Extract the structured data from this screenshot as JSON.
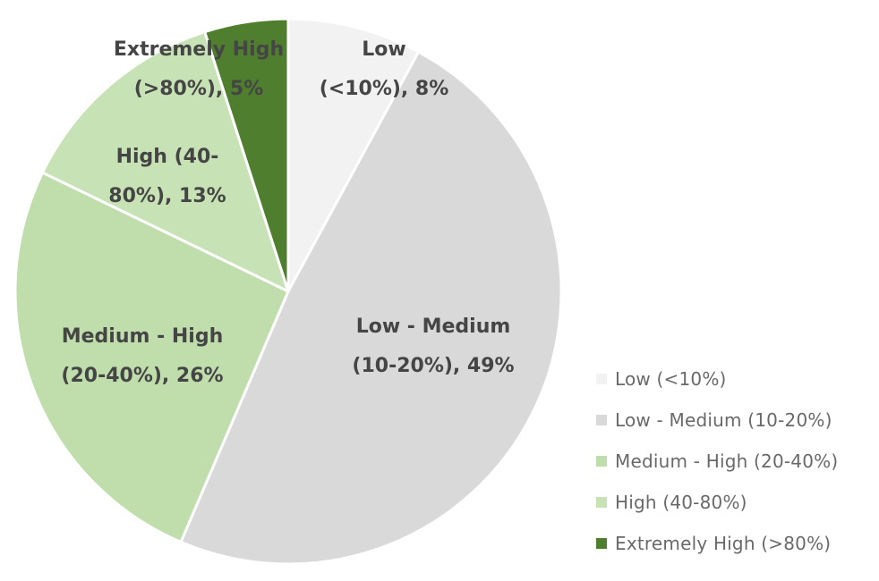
{
  "chart_data": {
    "type": "pie",
    "title": "",
    "unit": "%",
    "legend_position": "right",
    "background_color": "#ffffff",
    "label_text_color": "#454545",
    "legend_text_color": "#696969",
    "categories": [
      "Low (<10%)",
      "Low - Medium (10-20%)",
      "Medium - High (20-40%)",
      "High (40-80%)",
      "Extremely High (>80%)"
    ],
    "values": [
      8,
      49,
      26,
      13,
      5
    ],
    "slices": [
      {
        "label": "Low (<10%)",
        "value": 8,
        "color": "#f2f2f2",
        "label_lines": [
          "Low",
          "(<10%), 8%"
        ]
      },
      {
        "label": "Low - Medium (10-20%)",
        "value": 49,
        "color": "#d9d9d9",
        "label_lines": [
          "Low - Medium",
          "(10-20%), 49%"
        ]
      },
      {
        "label": "Medium - High (20-40%)",
        "value": 26,
        "color": "#c0ddac",
        "label_lines": [
          "Medium - High",
          "(20-40%), 26%"
        ]
      },
      {
        "label": "High (40-80%)",
        "value": 13,
        "color": "#c7e2b5",
        "label_lines": [
          "High (40-",
          "80%), 13%"
        ]
      },
      {
        "label": "Extremely High (>80%)",
        "value": 5,
        "color": "#4e7e2e",
        "label_lines": [
          "Extremely High",
          "(>80%), 5%"
        ]
      }
    ]
  }
}
